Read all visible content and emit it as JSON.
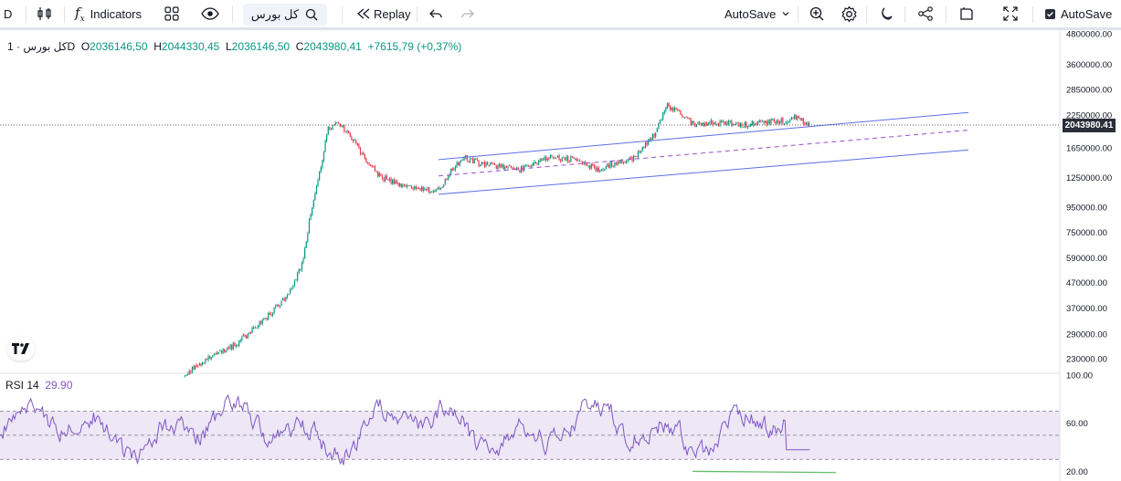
{
  "toolbar": {
    "interval_short": "D",
    "indicators_label": "Indicators",
    "symbol_search": "کل بورس",
    "replay_label": "Replay",
    "autosave_dropdown": "AutoSave",
    "autosave_checkbox": "AutoSave"
  },
  "legend": {
    "symbol": "کل بورس · 1D",
    "o_key": "O",
    "o_val": "2036146,50",
    "h_key": "H",
    "h_val": "2044330,45",
    "l_key": "L",
    "l_val": "2036146,50",
    "c_key": "C",
    "c_val": "2043980,41",
    "change": "+7615,79 (+0,37%)"
  },
  "rsi_legend": {
    "name": "RSI 14",
    "value": "29.90"
  },
  "price_badge": "2043980.41",
  "colors": {
    "up": "#089981",
    "down": "#f23645",
    "channel": "#5b6fe6",
    "median": "#9c4dcc",
    "rsi": "#7e57c2",
    "rsi_band": "#ede7f6",
    "support": "#66bb6a"
  },
  "icons": [
    "bar-style-icon",
    "fx-icon",
    "templates-icon",
    "eye-icon",
    "search-icon",
    "replay-icon",
    "undo-icon",
    "redo-icon",
    "chevron-down-icon",
    "quick-search-icon",
    "settings-icon",
    "moon-icon",
    "share-icon",
    "screenshot-icon",
    "fullscreen-icon",
    "tradingview-logo-icon"
  ],
  "chart_data": [
    {
      "type": "candlestick",
      "name": "کل بورس · 1D",
      "scale": "log",
      "ylim": [
        195000,
        4800000
      ],
      "y_ticks": [
        4800000,
        3600000,
        2850000,
        2250000,
        1650000,
        1250000,
        950000,
        750000,
        590000,
        470000,
        370000,
        290000,
        230000
      ],
      "y_tick_labels": [
        "4800000.00",
        "3600000.00",
        "2850000.00",
        "2250000.00",
        "1650000.00",
        "1250000.00",
        "950000.00",
        "750000.00",
        "590000.00",
        "470000.00",
        "370000.00",
        "290000.00",
        "230000.00"
      ],
      "last_price": 2043980.41,
      "path": [
        [
          0.165,
          200000
        ],
        [
          0.19,
          235000
        ],
        [
          0.21,
          262000
        ],
        [
          0.225,
          300000
        ],
        [
          0.24,
          345000
        ],
        [
          0.255,
          410000
        ],
        [
          0.27,
          560000
        ],
        [
          0.277,
          900000
        ],
        [
          0.285,
          1300000
        ],
        [
          0.293,
          2000000
        ],
        [
          0.303,
          2050000
        ],
        [
          0.315,
          1800000
        ],
        [
          0.325,
          1500000
        ],
        [
          0.34,
          1250000
        ],
        [
          0.355,
          1180000
        ],
        [
          0.375,
          1120000
        ],
        [
          0.39,
          1100000
        ],
        [
          0.403,
          1350000
        ],
        [
          0.415,
          1500000
        ],
        [
          0.43,
          1420000
        ],
        [
          0.45,
          1380000
        ],
        [
          0.465,
          1350000
        ],
        [
          0.49,
          1520000
        ],
        [
          0.51,
          1480000
        ],
        [
          0.535,
          1350000
        ],
        [
          0.55,
          1450000
        ],
        [
          0.565,
          1500000
        ],
        [
          0.585,
          1900000
        ],
        [
          0.595,
          2450000
        ],
        [
          0.605,
          2300000
        ],
        [
          0.62,
          2050000
        ],
        [
          0.64,
          2100000
        ],
        [
          0.66,
          2050000
        ],
        [
          0.68,
          2100000
        ],
        [
          0.7,
          2120000
        ],
        [
          0.71,
          2200000
        ],
        [
          0.722,
          2050000
        ]
      ],
      "channel": {
        "upper": [
          [
            "start",
            1480000
          ],
          [
            "end",
            2300000
          ]
        ],
        "median": [
          [
            "start",
            1270000
          ],
          [
            "end",
            1950000
          ]
        ],
        "lower": [
          [
            "start",
            1070000
          ],
          [
            "end",
            1620000
          ]
        ]
      }
    },
    {
      "type": "line",
      "name": "RSI 14",
      "ylim": [
        15,
        100
      ],
      "y_ticks": [
        100,
        60,
        20
      ],
      "y_tick_labels": [
        "100.00",
        "60.00",
        "20.00"
      ],
      "bands": [
        30,
        50,
        70
      ],
      "last_value": 29.9
    }
  ]
}
